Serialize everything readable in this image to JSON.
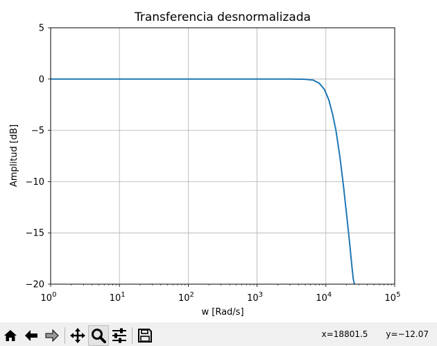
{
  "toolbar": {
    "buttons": [
      {
        "name": "home",
        "icon": "home-icon"
      },
      {
        "name": "back",
        "icon": "arrow-left-icon"
      },
      {
        "name": "forward",
        "icon": "arrow-right-icon"
      },
      {
        "name": "pan",
        "icon": "move-icon"
      },
      {
        "name": "zoom",
        "icon": "magnifier-icon",
        "active": true
      },
      {
        "name": "configure-subplots",
        "icon": "sliders-icon"
      },
      {
        "name": "save",
        "icon": "floppy-disk-icon"
      }
    ]
  },
  "status": {
    "x_readout": "x=18801.5",
    "y_readout": "y=−12.07"
  },
  "chart_data": {
    "type": "line",
    "title": "Transferencia desnormalizada",
    "xlabel": "w [Rad/s]",
    "ylabel": "Amplitud [dB]",
    "xscale": "log",
    "xlim": [
      1,
      100000
    ],
    "ylim": [
      -20,
      5
    ],
    "grid": true,
    "line_color": "#1f77b4",
    "x_ticks": [
      {
        "base": "10",
        "exp": "0"
      },
      {
        "base": "10",
        "exp": "1"
      },
      {
        "base": "10",
        "exp": "2"
      },
      {
        "base": "10",
        "exp": "3"
      },
      {
        "base": "10",
        "exp": "4"
      },
      {
        "base": "10",
        "exp": "5"
      }
    ],
    "x_tick_values": [
      1,
      10,
      100,
      1000,
      10000,
      100000
    ],
    "y_ticks": [
      "5",
      "0",
      "−5",
      "−10",
      "−15",
      "−20"
    ],
    "y_tick_values": [
      5,
      0,
      -5,
      -10,
      -15,
      -20
    ],
    "series": [
      {
        "x": [
          1,
          10,
          100,
          1000,
          3000,
          5000,
          6500,
          8000,
          9500,
          11000,
          12500,
          14000,
          16000,
          18000,
          20000,
          22000,
          24000,
          25000,
          26000
        ],
        "y": [
          0,
          0,
          0,
          0,
          0,
          -0.02,
          -0.1,
          -0.4,
          -1.0,
          -2.0,
          -3.4,
          -5.0,
          -7.6,
          -10.4,
          -13.2,
          -15.8,
          -18.4,
          -19.5,
          -20.0
        ]
      }
    ]
  }
}
